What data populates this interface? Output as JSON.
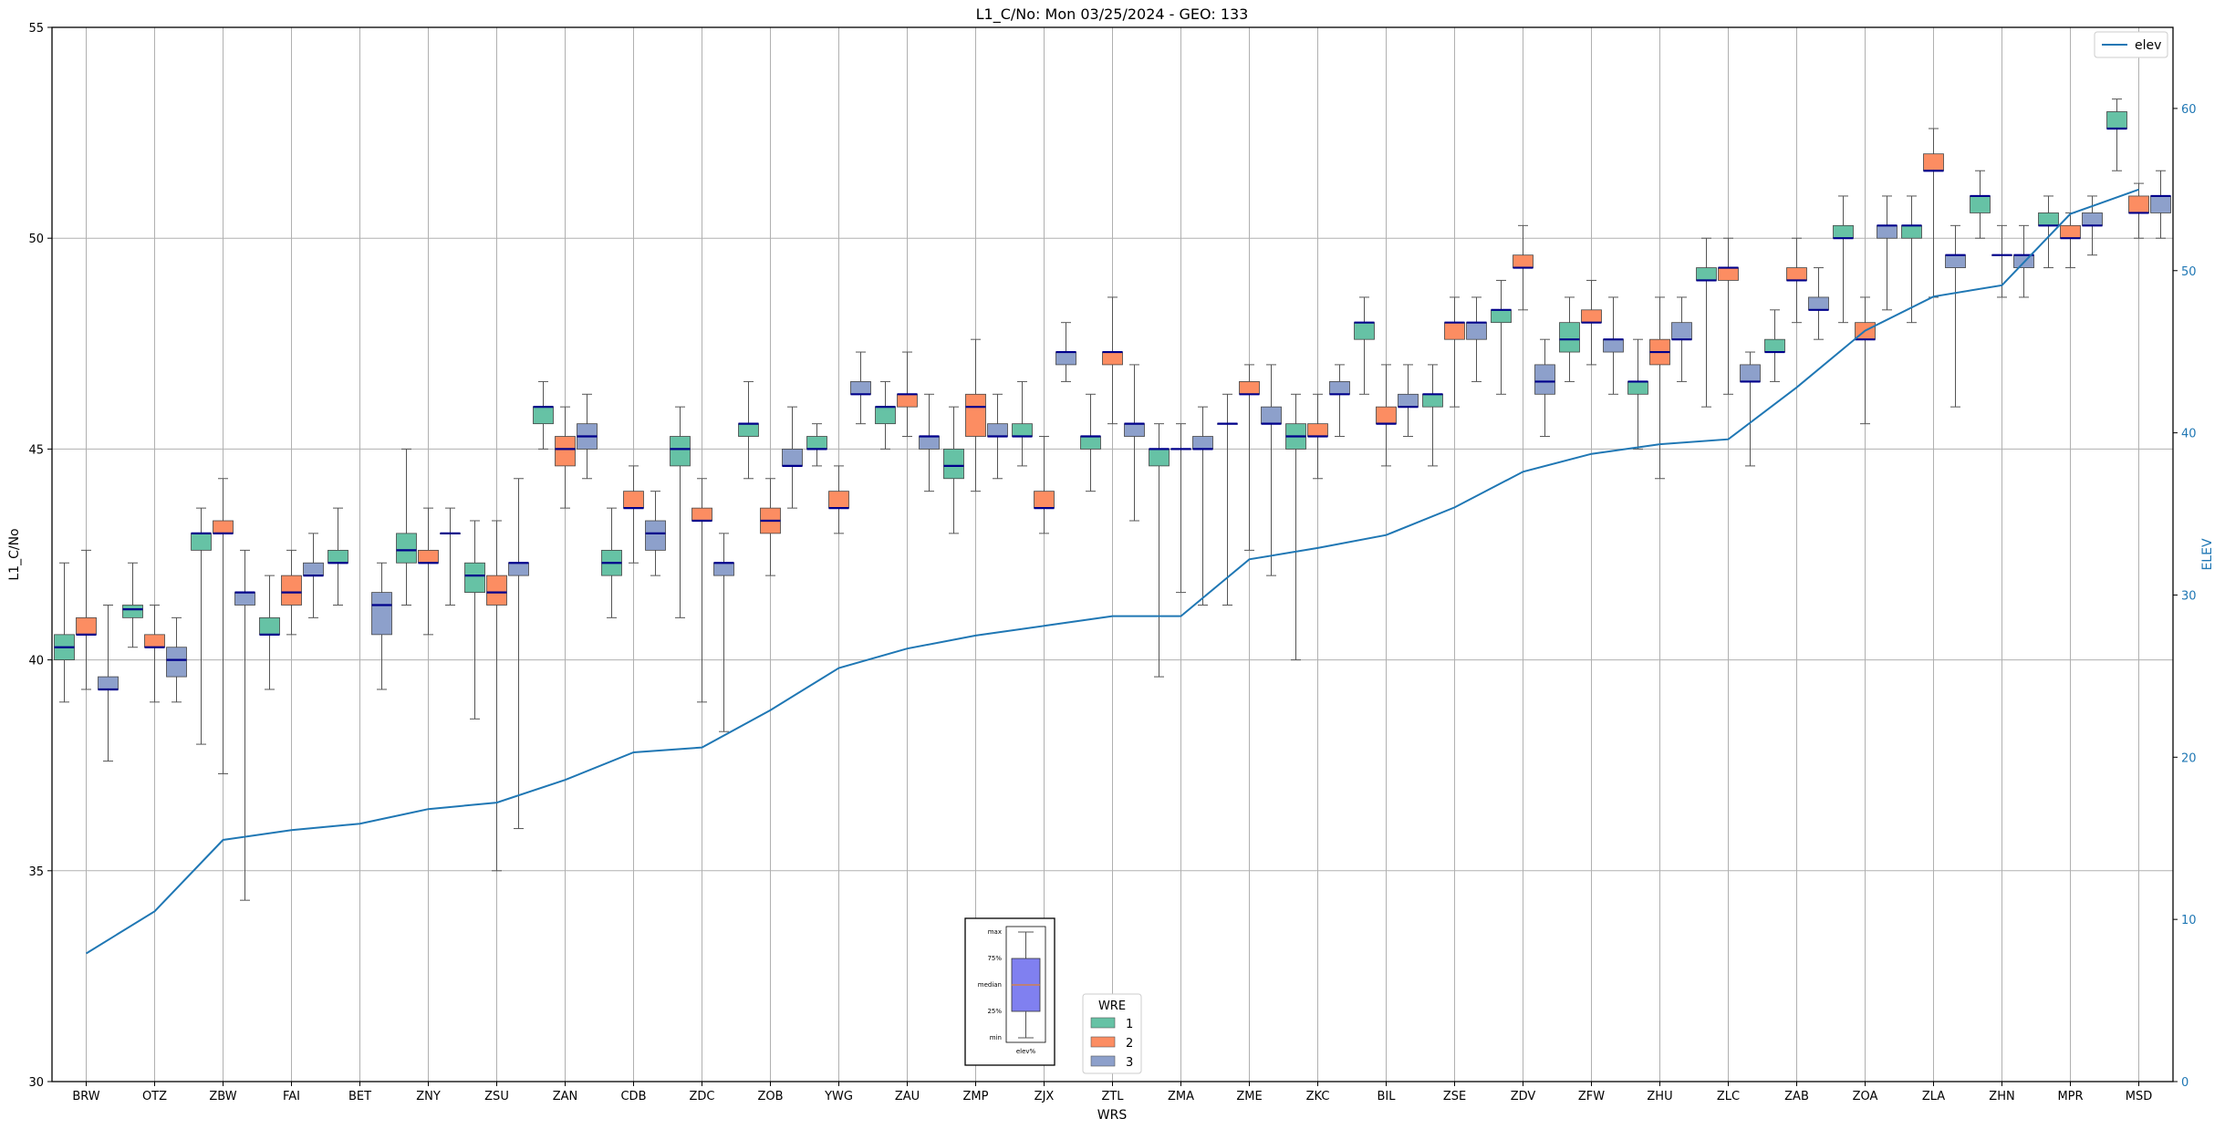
{
  "chart_data": {
    "type": "box",
    "title": "L1_C/No: Mon 03/25/2024 - GEO: 133",
    "xlabel": "WRS",
    "ylabel": "L1_C/No",
    "y2label": "ELEV",
    "ylim": [
      30,
      55
    ],
    "y2lim": [
      0,
      65
    ],
    "yticks": [
      30,
      35,
      40,
      45,
      50,
      55
    ],
    "y2ticks": [
      0,
      10,
      20,
      30,
      40,
      50,
      60
    ],
    "grid": true,
    "categories": [
      "BRW",
      "OTZ",
      "ZBW",
      "FAI",
      "BET",
      "ZNY",
      "ZSU",
      "ZAN",
      "CDB",
      "ZDC",
      "ZOB",
      "YWG",
      "ZAU",
      "ZMP",
      "ZJX",
      "ZTL",
      "ZMA",
      "ZME",
      "ZKC",
      "BIL",
      "ZSE",
      "ZDV",
      "ZFW",
      "ZHU",
      "ZLC",
      "ZAB",
      "ZOA",
      "ZLA",
      "ZHN",
      "MPR",
      "MSD"
    ],
    "series": [
      {
        "name": "1",
        "color": "#66c2a5",
        "boxes": [
          {
            "x": "BRW",
            "min": 39.0,
            "q1": 40.0,
            "median": 40.3,
            "q3": 40.6,
            "max": 42.3
          },
          {
            "x": "OTZ",
            "min": 40.3,
            "q1": 41.0,
            "median": 41.2,
            "q3": 41.3,
            "max": 42.3
          },
          {
            "x": "ZBW",
            "min": 38.0,
            "q1": 42.6,
            "median": 43.0,
            "q3": 43.0,
            "max": 43.6
          },
          {
            "x": "FAI",
            "min": 39.3,
            "q1": 40.6,
            "median": 40.6,
            "q3": 41.0,
            "max": 42.0
          },
          {
            "x": "BET",
            "min": 41.3,
            "q1": 42.3,
            "median": 42.3,
            "q3": 42.6,
            "max": 43.6
          },
          {
            "x": "ZNY",
            "min": 41.3,
            "q1": 42.3,
            "median": 42.6,
            "q3": 43.0,
            "max": 45.0
          },
          {
            "x": "ZSU",
            "min": 38.6,
            "q1": 41.6,
            "median": 42.0,
            "q3": 42.3,
            "max": 43.3
          },
          {
            "x": "ZAN",
            "min": 45.0,
            "q1": 45.6,
            "median": 46.0,
            "q3": 46.0,
            "max": 46.6
          },
          {
            "x": "CDB",
            "min": 41.0,
            "q1": 42.0,
            "median": 42.3,
            "q3": 42.6,
            "max": 43.6
          },
          {
            "x": "ZDC",
            "min": 41.0,
            "q1": 44.6,
            "median": 45.0,
            "q3": 45.3,
            "max": 46.0
          },
          {
            "x": "ZOB",
            "min": 44.3,
            "q1": 45.3,
            "median": 45.6,
            "q3": 45.6,
            "max": 46.6
          },
          {
            "x": "YWG",
            "min": 44.6,
            "q1": 45.0,
            "median": 45.0,
            "q3": 45.3,
            "max": 45.6
          },
          {
            "x": "ZAU",
            "min": 45.0,
            "q1": 45.6,
            "median": 46.0,
            "q3": 46.0,
            "max": 46.6
          },
          {
            "x": "ZMP",
            "min": 43.0,
            "q1": 44.3,
            "median": 44.6,
            "q3": 45.0,
            "max": 46.0
          },
          {
            "x": "ZJX",
            "min": 44.6,
            "q1": 45.3,
            "median": 45.3,
            "q3": 45.6,
            "max": 46.6
          },
          {
            "x": "ZTL",
            "min": 44.0,
            "q1": 45.0,
            "median": 45.3,
            "q3": 45.3,
            "max": 46.3
          },
          {
            "x": "ZMA",
            "min": 39.6,
            "q1": 44.6,
            "median": 45.0,
            "q3": 45.0,
            "max": 45.6
          },
          {
            "x": "ZME",
            "min": 41.3,
            "q1": 45.6,
            "median": 45.6,
            "q3": 45.6,
            "max": 46.3
          },
          {
            "x": "ZKC",
            "min": 40.0,
            "q1": 45.0,
            "median": 45.3,
            "q3": 45.6,
            "max": 46.3
          },
          {
            "x": "BIL",
            "min": 46.3,
            "q1": 47.6,
            "median": 48.0,
            "q3": 48.0,
            "max": 48.6
          },
          {
            "x": "ZSE",
            "min": 44.6,
            "q1": 46.0,
            "median": 46.3,
            "q3": 46.3,
            "max": 47.0
          },
          {
            "x": "ZDV",
            "min": 46.3,
            "q1": 48.0,
            "median": 48.3,
            "q3": 48.3,
            "max": 49.0
          },
          {
            "x": "ZFW",
            "min": 46.6,
            "q1": 47.3,
            "median": 47.6,
            "q3": 48.0,
            "max": 48.6
          },
          {
            "x": "ZHU",
            "min": 45.0,
            "q1": 46.3,
            "median": 46.6,
            "q3": 46.6,
            "max": 47.6
          },
          {
            "x": "ZLC",
            "min": 46.0,
            "q1": 49.0,
            "median": 49.0,
            "q3": 49.3,
            "max": 50.0
          },
          {
            "x": "ZAB",
            "min": 46.6,
            "q1": 47.3,
            "median": 47.3,
            "q3": 47.6,
            "max": 48.3
          },
          {
            "x": "ZOA",
            "min": 48.0,
            "q1": 50.0,
            "median": 50.0,
            "q3": 50.3,
            "max": 51.0
          },
          {
            "x": "ZLA",
            "min": 48.0,
            "q1": 50.0,
            "median": 50.3,
            "q3": 50.3,
            "max": 51.0
          },
          {
            "x": "ZHN",
            "min": 50.0,
            "q1": 50.6,
            "median": 51.0,
            "q3": 51.0,
            "max": 51.6
          },
          {
            "x": "MPR",
            "min": 49.3,
            "q1": 50.3,
            "median": 50.3,
            "q3": 50.6,
            "max": 51.0
          },
          {
            "x": "MSD",
            "min": 51.6,
            "q1": 52.6,
            "median": 52.6,
            "q3": 53.0,
            "max": 53.3
          }
        ]
      },
      {
        "name": "2",
        "color": "#fc8d62",
        "boxes": [
          {
            "x": "BRW",
            "min": 39.3,
            "q1": 40.6,
            "median": 40.6,
            "q3": 41.0,
            "max": 42.6
          },
          {
            "x": "OTZ",
            "min": 39.0,
            "q1": 40.3,
            "median": 40.3,
            "q3": 40.6,
            "max": 41.3
          },
          {
            "x": "ZBW",
            "min": 37.3,
            "q1": 43.0,
            "median": 43.0,
            "q3": 43.3,
            "max": 44.3
          },
          {
            "x": "FAI",
            "min": 40.6,
            "q1": 41.3,
            "median": 41.6,
            "q3": 42.0,
            "max": 42.6
          },
          {
            "x": "ZNY",
            "min": 40.6,
            "q1": 42.3,
            "median": 42.3,
            "q3": 42.6,
            "max": 43.6
          },
          {
            "x": "ZSU",
            "min": 35.0,
            "q1": 41.3,
            "median": 41.6,
            "q3": 42.0,
            "max": 43.3
          },
          {
            "x": "ZAN",
            "min": 43.6,
            "q1": 44.6,
            "median": 45.0,
            "q3": 45.3,
            "max": 46.0
          },
          {
            "x": "CDB",
            "min": 42.3,
            "q1": 43.6,
            "median": 43.6,
            "q3": 44.0,
            "max": 44.6
          },
          {
            "x": "ZDC",
            "min": 39.0,
            "q1": 43.3,
            "median": 43.3,
            "q3": 43.6,
            "max": 44.3
          },
          {
            "x": "ZOB",
            "min": 42.0,
            "q1": 43.0,
            "median": 43.3,
            "q3": 43.6,
            "max": 44.3
          },
          {
            "x": "YWG",
            "min": 43.0,
            "q1": 43.6,
            "median": 43.6,
            "q3": 44.0,
            "max": 44.6
          },
          {
            "x": "ZAU",
            "min": 45.3,
            "q1": 46.0,
            "median": 46.3,
            "q3": 46.3,
            "max": 47.3
          },
          {
            "x": "ZMP",
            "min": 44.0,
            "q1": 45.3,
            "median": 46.0,
            "q3": 46.3,
            "max": 47.6
          },
          {
            "x": "ZJX",
            "min": 43.0,
            "q1": 43.6,
            "median": 43.6,
            "q3": 44.0,
            "max": 45.3
          },
          {
            "x": "ZTL",
            "min": 45.6,
            "q1": 47.0,
            "median": 47.3,
            "q3": 47.3,
            "max": 48.6
          },
          {
            "x": "ZMA",
            "min": 41.6,
            "q1": 45.0,
            "median": 45.0,
            "q3": 45.0,
            "max": 45.6
          },
          {
            "x": "ZME",
            "min": 42.6,
            "q1": 46.3,
            "median": 46.3,
            "q3": 46.6,
            "max": 47.0
          },
          {
            "x": "ZKC",
            "min": 44.3,
            "q1": 45.3,
            "median": 45.3,
            "q3": 45.6,
            "max": 46.3
          },
          {
            "x": "BIL",
            "min": 44.6,
            "q1": 45.6,
            "median": 45.6,
            "q3": 46.0,
            "max": 47.0
          },
          {
            "x": "ZSE",
            "min": 46.0,
            "q1": 47.6,
            "median": 48.0,
            "q3": 48.0,
            "max": 48.6
          },
          {
            "x": "ZDV",
            "min": 48.3,
            "q1": 49.3,
            "median": 49.3,
            "q3": 49.6,
            "max": 50.3
          },
          {
            "x": "ZFW",
            "min": 47.0,
            "q1": 48.0,
            "median": 48.0,
            "q3": 48.3,
            "max": 49.0
          },
          {
            "x": "ZHU",
            "min": 44.3,
            "q1": 47.0,
            "median": 47.3,
            "q3": 47.6,
            "max": 48.6
          },
          {
            "x": "ZLC",
            "min": 46.3,
            "q1": 49.0,
            "median": 49.3,
            "q3": 49.3,
            "max": 50.0
          },
          {
            "x": "ZAB",
            "min": 48.0,
            "q1": 49.0,
            "median": 49.0,
            "q3": 49.3,
            "max": 50.0
          },
          {
            "x": "ZOA",
            "min": 45.6,
            "q1": 47.6,
            "median": 47.6,
            "q3": 48.0,
            "max": 48.6
          },
          {
            "x": "ZLA",
            "min": 48.6,
            "q1": 51.6,
            "median": 51.6,
            "q3": 52.0,
            "max": 52.6
          },
          {
            "x": "ZHN",
            "min": 48.6,
            "q1": 49.6,
            "median": 49.6,
            "q3": 49.6,
            "max": 50.3
          },
          {
            "x": "MPR",
            "min": 49.3,
            "q1": 50.0,
            "median": 50.0,
            "q3": 50.3,
            "max": 50.6
          },
          {
            "x": "MSD",
            "min": 50.0,
            "q1": 50.6,
            "median": 50.6,
            "q3": 51.0,
            "max": 51.3
          }
        ]
      },
      {
        "name": "3",
        "color": "#8da0cb",
        "boxes": [
          {
            "x": "BRW",
            "min": 37.6,
            "q1": 39.3,
            "median": 39.3,
            "q3": 39.6,
            "max": 41.3
          },
          {
            "x": "OTZ",
            "min": 39.0,
            "q1": 39.6,
            "median": 40.0,
            "q3": 40.3,
            "max": 41.0
          },
          {
            "x": "ZBW",
            "min": 34.3,
            "q1": 41.3,
            "median": 41.6,
            "q3": 41.6,
            "max": 42.6
          },
          {
            "x": "FAI",
            "min": 41.0,
            "q1": 42.0,
            "median": 42.0,
            "q3": 42.3,
            "max": 43.0
          },
          {
            "x": "BET",
            "min": 39.3,
            "q1": 40.6,
            "median": 41.3,
            "q3": 41.6,
            "max": 42.3
          },
          {
            "x": "ZNY",
            "min": 41.3,
            "q1": 43.0,
            "median": 43.0,
            "q3": 43.0,
            "max": 43.6
          },
          {
            "x": "ZSU",
            "min": 36.0,
            "q1": 42.0,
            "median": 42.3,
            "q3": 42.3,
            "max": 44.3
          },
          {
            "x": "ZAN",
            "min": 44.3,
            "q1": 45.0,
            "median": 45.3,
            "q3": 45.6,
            "max": 46.3
          },
          {
            "x": "CDB",
            "min": 42.0,
            "q1": 42.6,
            "median": 43.0,
            "q3": 43.3,
            "max": 44.0
          },
          {
            "x": "ZDC",
            "min": 38.3,
            "q1": 42.0,
            "median": 42.3,
            "q3": 42.3,
            "max": 43.0
          },
          {
            "x": "ZOB",
            "min": 43.6,
            "q1": 44.6,
            "median": 44.6,
            "q3": 45.0,
            "max": 46.0
          },
          {
            "x": "YWG",
            "min": 45.6,
            "q1": 46.3,
            "median": 46.3,
            "q3": 46.6,
            "max": 47.3
          },
          {
            "x": "ZAU",
            "min": 44.0,
            "q1": 45.0,
            "median": 45.3,
            "q3": 45.3,
            "max": 46.3
          },
          {
            "x": "ZMP",
            "min": 44.3,
            "q1": 45.3,
            "median": 45.3,
            "q3": 45.6,
            "max": 46.3
          },
          {
            "x": "ZJX",
            "min": 46.6,
            "q1": 47.0,
            "median": 47.3,
            "q3": 47.3,
            "max": 48.0
          },
          {
            "x": "ZTL",
            "min": 43.3,
            "q1": 45.3,
            "median": 45.6,
            "q3": 45.6,
            "max": 47.0
          },
          {
            "x": "ZMA",
            "min": 41.3,
            "q1": 45.0,
            "median": 45.0,
            "q3": 45.3,
            "max": 46.0
          },
          {
            "x": "ZME",
            "min": 42.0,
            "q1": 45.6,
            "median": 45.6,
            "q3": 46.0,
            "max": 47.0
          },
          {
            "x": "ZKC",
            "min": 45.3,
            "q1": 46.3,
            "median": 46.3,
            "q3": 46.6,
            "max": 47.0
          },
          {
            "x": "BIL",
            "min": 45.3,
            "q1": 46.0,
            "median": 46.0,
            "q3": 46.3,
            "max": 47.0
          },
          {
            "x": "ZSE",
            "min": 46.6,
            "q1": 47.6,
            "median": 48.0,
            "q3": 48.0,
            "max": 48.6
          },
          {
            "x": "ZDV",
            "min": 45.3,
            "q1": 46.3,
            "median": 46.6,
            "q3": 47.0,
            "max": 47.6
          },
          {
            "x": "ZFW",
            "min": 46.3,
            "q1": 47.3,
            "median": 47.6,
            "q3": 47.6,
            "max": 48.6
          },
          {
            "x": "ZHU",
            "min": 46.6,
            "q1": 47.6,
            "median": 47.6,
            "q3": 48.0,
            "max": 48.6
          },
          {
            "x": "ZLC",
            "min": 44.6,
            "q1": 46.6,
            "median": 46.6,
            "q3": 47.0,
            "max": 47.3
          },
          {
            "x": "ZAB",
            "min": 47.6,
            "q1": 48.3,
            "median": 48.3,
            "q3": 48.6,
            "max": 49.3
          },
          {
            "x": "ZOA",
            "min": 48.3,
            "q1": 50.0,
            "median": 50.3,
            "q3": 50.3,
            "max": 51.0
          },
          {
            "x": "ZLA",
            "min": 46.0,
            "q1": 49.3,
            "median": 49.6,
            "q3": 49.6,
            "max": 50.3
          },
          {
            "x": "ZHN",
            "min": 48.6,
            "q1": 49.3,
            "median": 49.6,
            "q3": 49.6,
            "max": 50.3
          },
          {
            "x": "MPR",
            "min": 49.6,
            "q1": 50.3,
            "median": 50.3,
            "q3": 50.6,
            "max": 51.0
          },
          {
            "x": "MSD",
            "min": 50.0,
            "q1": 50.6,
            "median": 51.0,
            "q3": 51.0,
            "max": 51.6
          }
        ]
      }
    ],
    "line": {
      "name": "elev",
      "axis": "right",
      "color": "#1f77b4",
      "values": [
        7.9,
        10.5,
        14.9,
        15.5,
        15.9,
        16.8,
        17.2,
        18.6,
        20.3,
        20.6,
        22.9,
        25.5,
        26.7,
        27.5,
        28.1,
        28.7,
        28.7,
        32.2,
        32.9,
        33.7,
        35.4,
        37.6,
        38.7,
        39.3,
        39.6,
        42.8,
        46.3,
        48.4,
        49.1,
        53.5,
        55.0
      ]
    },
    "legends": {
      "line_legend": {
        "label": "elev",
        "placement": "top-right"
      },
      "wre_legend": {
        "title": "WRE",
        "entries": [
          "1",
          "2",
          "3"
        ],
        "placement": "bottom-center"
      }
    },
    "key_inset": {
      "labels": [
        "max",
        "75%",
        "median",
        "25%",
        "min"
      ],
      "caption": "elev%"
    },
    "colors": {
      "median_line": "#00008b",
      "whisker": "#555555",
      "grid": "#b0b0b0",
      "right_axis": "#1f77b4"
    }
  }
}
